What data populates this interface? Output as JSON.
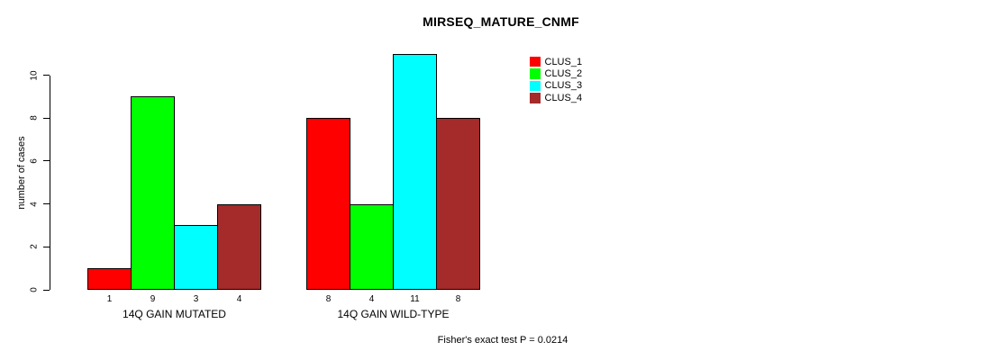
{
  "chart_data": {
    "type": "bar",
    "title": "MIRSEQ_MATURE_CNMF",
    "ylabel": "number of cases",
    "xlabel": "",
    "ylim": [
      0,
      10
    ],
    "yticks": [
      0,
      2,
      4,
      6,
      8,
      10
    ],
    "grid": false,
    "legend_position": "top-right",
    "categories": [
      "14Q GAIN MUTATED",
      "14Q GAIN WILD-TYPE"
    ],
    "series": [
      {
        "name": "CLUS_1",
        "color": "#ff0000",
        "values": [
          1,
          8
        ]
      },
      {
        "name": "CLUS_2",
        "color": "#00ff00",
        "values": [
          9,
          4
        ]
      },
      {
        "name": "CLUS_3",
        "color": "#00ffff",
        "values": [
          3,
          11
        ]
      },
      {
        "name": "CLUS_4",
        "color": "#a52a2a",
        "values": [
          4,
          8
        ]
      }
    ],
    "show_values_under_bars": true,
    "bar_border_color": "#000000",
    "axis_color": "#000000",
    "annotation": "Fisher's exact test P = 0.0214"
  }
}
